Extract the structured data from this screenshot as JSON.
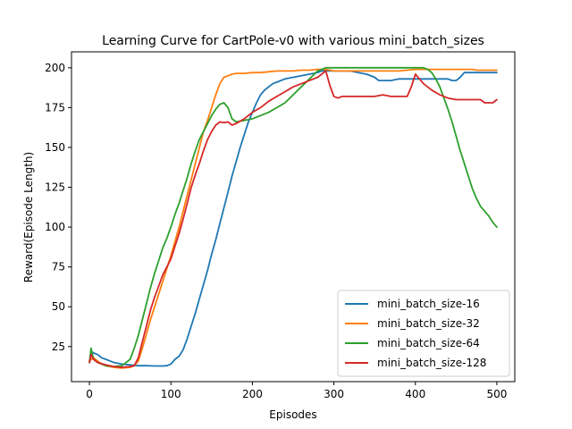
{
  "chart_data": {
    "type": "line",
    "title": "Learning Curve for CartPole-v0 with various mini_batch_sizes",
    "xlabel": "Episodes",
    "ylabel": "Reward(Episode Length)",
    "xlim": [
      -22,
      522
    ],
    "ylim": [
      3,
      210
    ],
    "xticks": [
      0,
      100,
      200,
      300,
      400,
      500
    ],
    "yticks": [
      25,
      50,
      75,
      100,
      125,
      150,
      175,
      200
    ],
    "grid": false,
    "legend_position": "lower-right",
    "series": [
      {
        "name": "mini_batch_size-16",
        "color": "#1f77b4",
        "points": [
          [
            0,
            15
          ],
          [
            2,
            22
          ],
          [
            5,
            21
          ],
          [
            10,
            20
          ],
          [
            15,
            18
          ],
          [
            20,
            17
          ],
          [
            25,
            16
          ],
          [
            30,
            15
          ],
          [
            40,
            14
          ],
          [
            50,
            13.5
          ],
          [
            60,
            13
          ],
          [
            70,
            13
          ],
          [
            80,
            12.8
          ],
          [
            90,
            12.8
          ],
          [
            95,
            13
          ],
          [
            100,
            14
          ],
          [
            105,
            17
          ],
          [
            110,
            19
          ],
          [
            115,
            23
          ],
          [
            120,
            30
          ],
          [
            125,
            38
          ],
          [
            130,
            46
          ],
          [
            135,
            55
          ],
          [
            140,
            64
          ],
          [
            145,
            73
          ],
          [
            150,
            83
          ],
          [
            155,
            92
          ],
          [
            160,
            102
          ],
          [
            165,
            112
          ],
          [
            170,
            122
          ],
          [
            175,
            132
          ],
          [
            180,
            141
          ],
          [
            185,
            150
          ],
          [
            190,
            158
          ],
          [
            195,
            166
          ],
          [
            200,
            172
          ],
          [
            205,
            178
          ],
          [
            210,
            183
          ],
          [
            215,
            186
          ],
          [
            220,
            188
          ],
          [
            225,
            190
          ],
          [
            230,
            191
          ],
          [
            240,
            193
          ],
          [
            250,
            194
          ],
          [
            260,
            195
          ],
          [
            270,
            196
          ],
          [
            280,
            197
          ],
          [
            285,
            198
          ],
          [
            290,
            198
          ],
          [
            300,
            198
          ],
          [
            310,
            198
          ],
          [
            320,
            198
          ],
          [
            330,
            197
          ],
          [
            340,
            196
          ],
          [
            350,
            194
          ],
          [
            355,
            192
          ],
          [
            360,
            192
          ],
          [
            370,
            192
          ],
          [
            380,
            193
          ],
          [
            390,
            193
          ],
          [
            400,
            193
          ],
          [
            410,
            193
          ],
          [
            420,
            193
          ],
          [
            430,
            193
          ],
          [
            440,
            193
          ],
          [
            445,
            192
          ],
          [
            450,
            192
          ],
          [
            455,
            194
          ],
          [
            460,
            197
          ],
          [
            470,
            197
          ],
          [
            480,
            197
          ],
          [
            490,
            197
          ],
          [
            500,
            197
          ]
        ]
      },
      {
        "name": "mini_batch_size-32",
        "color": "#ff7f0e",
        "points": [
          [
            0,
            16
          ],
          [
            5,
            18
          ],
          [
            10,
            16
          ],
          [
            15,
            14
          ],
          [
            20,
            13
          ],
          [
            30,
            12
          ],
          [
            40,
            11.5
          ],
          [
            50,
            12
          ],
          [
            55,
            13
          ],
          [
            60,
            16
          ],
          [
            65,
            24
          ],
          [
            70,
            33
          ],
          [
            75,
            42
          ],
          [
            80,
            50
          ],
          [
            85,
            58
          ],
          [
            90,
            66
          ],
          [
            95,
            74
          ],
          [
            100,
            82
          ],
          [
            105,
            91
          ],
          [
            110,
            100
          ],
          [
            115,
            110
          ],
          [
            120,
            120
          ],
          [
            125,
            130
          ],
          [
            130,
            140
          ],
          [
            135,
            150
          ],
          [
            140,
            160
          ],
          [
            145,
            167
          ],
          [
            150,
            175
          ],
          [
            155,
            183
          ],
          [
            160,
            190
          ],
          [
            165,
            194
          ],
          [
            170,
            195
          ],
          [
            175,
            196
          ],
          [
            180,
            196.5
          ],
          [
            190,
            196.5
          ],
          [
            200,
            197
          ],
          [
            210,
            197
          ],
          [
            220,
            197.5
          ],
          [
            230,
            198
          ],
          [
            240,
            198
          ],
          [
            250,
            198
          ],
          [
            260,
            198.5
          ],
          [
            270,
            198.5
          ],
          [
            280,
            199
          ],
          [
            290,
            199
          ],
          [
            300,
            198
          ],
          [
            320,
            198
          ],
          [
            340,
            198
          ],
          [
            360,
            198
          ],
          [
            380,
            198
          ],
          [
            400,
            199
          ],
          [
            420,
            199
          ],
          [
            440,
            199
          ],
          [
            460,
            199
          ],
          [
            470,
            199
          ],
          [
            475,
            198.5
          ],
          [
            480,
            198.5
          ],
          [
            490,
            198.5
          ],
          [
            500,
            198.5
          ]
        ]
      },
      {
        "name": "mini_batch_size-64",
        "color": "#2ca02c",
        "points": [
          [
            0,
            15
          ],
          [
            2,
            24
          ],
          [
            5,
            17
          ],
          [
            10,
            15
          ],
          [
            20,
            13
          ],
          [
            30,
            12.5
          ],
          [
            40,
            13
          ],
          [
            45,
            15
          ],
          [
            50,
            17
          ],
          [
            55,
            24
          ],
          [
            60,
            32
          ],
          [
            65,
            42
          ],
          [
            70,
            52
          ],
          [
            75,
            62
          ],
          [
            80,
            71
          ],
          [
            85,
            79
          ],
          [
            90,
            87
          ],
          [
            95,
            93
          ],
          [
            100,
            100
          ],
          [
            105,
            108
          ],
          [
            110,
            115
          ],
          [
            115,
            123
          ],
          [
            120,
            131
          ],
          [
            125,
            140
          ],
          [
            130,
            148
          ],
          [
            135,
            155
          ],
          [
            140,
            160
          ],
          [
            145,
            165
          ],
          [
            150,
            170
          ],
          [
            155,
            174
          ],
          [
            160,
            177
          ],
          [
            165,
            178
          ],
          [
            170,
            175
          ],
          [
            175,
            168
          ],
          [
            180,
            166
          ],
          [
            190,
            167
          ],
          [
            200,
            168
          ],
          [
            210,
            170
          ],
          [
            220,
            172
          ],
          [
            230,
            175
          ],
          [
            240,
            178
          ],
          [
            250,
            183
          ],
          [
            260,
            188
          ],
          [
            270,
            193
          ],
          [
            280,
            198
          ],
          [
            290,
            200
          ],
          [
            300,
            200
          ],
          [
            320,
            200
          ],
          [
            340,
            200
          ],
          [
            360,
            200
          ],
          [
            380,
            200
          ],
          [
            400,
            200
          ],
          [
            410,
            200
          ],
          [
            415,
            199
          ],
          [
            420,
            197
          ],
          [
            425,
            193
          ],
          [
            430,
            188
          ],
          [
            435,
            181
          ],
          [
            440,
            174
          ],
          [
            445,
            166
          ],
          [
            450,
            157
          ],
          [
            455,
            148
          ],
          [
            460,
            140
          ],
          [
            465,
            132
          ],
          [
            470,
            124
          ],
          [
            475,
            118
          ],
          [
            480,
            113
          ],
          [
            485,
            110
          ],
          [
            490,
            107
          ],
          [
            495,
            103
          ],
          [
            500,
            100
          ]
        ]
      },
      {
        "name": "mini_batch_size-128",
        "color": "#d62728",
        "points": [
          [
            0,
            15
          ],
          [
            2,
            20
          ],
          [
            5,
            17
          ],
          [
            10,
            15
          ],
          [
            20,
            13.5
          ],
          [
            30,
            12.5
          ],
          [
            40,
            12
          ],
          [
            50,
            12.5
          ],
          [
            55,
            13
          ],
          [
            60,
            18
          ],
          [
            65,
            28
          ],
          [
            70,
            38
          ],
          [
            75,
            48
          ],
          [
            80,
            56
          ],
          [
            85,
            63
          ],
          [
            90,
            70
          ],
          [
            95,
            75
          ],
          [
            100,
            80
          ],
          [
            105,
            88
          ],
          [
            110,
            96
          ],
          [
            115,
            105
          ],
          [
            120,
            115
          ],
          [
            125,
            125
          ],
          [
            130,
            133
          ],
          [
            135,
            140
          ],
          [
            140,
            148
          ],
          [
            145,
            155
          ],
          [
            150,
            160
          ],
          [
            155,
            164
          ],
          [
            160,
            166
          ],
          [
            165,
            165.5
          ],
          [
            170,
            166
          ],
          [
            175,
            164
          ],
          [
            180,
            165
          ],
          [
            190,
            168
          ],
          [
            200,
            172
          ],
          [
            210,
            175
          ],
          [
            220,
            179
          ],
          [
            230,
            182
          ],
          [
            240,
            185
          ],
          [
            250,
            188
          ],
          [
            260,
            190
          ],
          [
            270,
            192
          ],
          [
            280,
            194
          ],
          [
            285,
            196
          ],
          [
            290,
            198
          ],
          [
            295,
            189
          ],
          [
            300,
            182
          ],
          [
            305,
            181
          ],
          [
            310,
            182
          ],
          [
            320,
            182
          ],
          [
            340,
            182
          ],
          [
            350,
            182
          ],
          [
            360,
            183
          ],
          [
            370,
            182
          ],
          [
            380,
            182
          ],
          [
            390,
            182
          ],
          [
            395,
            188
          ],
          [
            400,
            196
          ],
          [
            405,
            193
          ],
          [
            410,
            190
          ],
          [
            415,
            188
          ],
          [
            420,
            186
          ],
          [
            430,
            183
          ],
          [
            440,
            181
          ],
          [
            450,
            180
          ],
          [
            460,
            180
          ],
          [
            470,
            180
          ],
          [
            480,
            180
          ],
          [
            485,
            178
          ],
          [
            490,
            178
          ],
          [
            495,
            178
          ],
          [
            500,
            180
          ]
        ]
      }
    ]
  }
}
